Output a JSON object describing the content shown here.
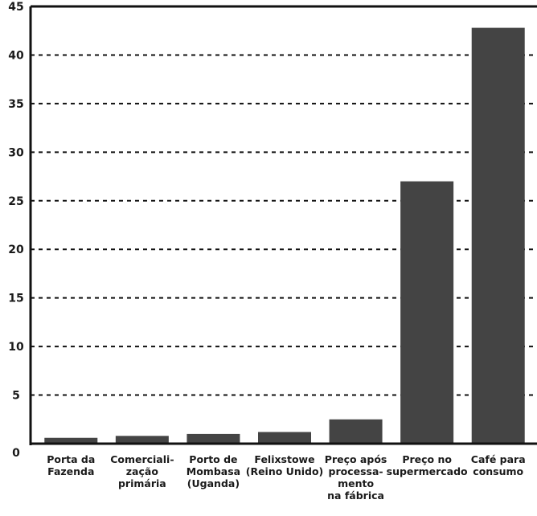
{
  "chart_data": {
    "type": "bar",
    "title": "",
    "xlabel": "",
    "ylabel": "",
    "ylim": [
      0,
      45
    ],
    "yticks": [
      0,
      5,
      10,
      15,
      20,
      25,
      30,
      35,
      40,
      45
    ],
    "grid": true,
    "legend": "none",
    "bar_color": "#444444",
    "categories": [
      [
        "Porta da",
        "Fazenda"
      ],
      [
        "Comerciali-",
        "zação",
        "primária"
      ],
      [
        "Porto de",
        "Mombasa",
        "(Uganda)"
      ],
      [
        "Felixstowe",
        "(Reino Unido)"
      ],
      [
        "Preço após",
        "processa-",
        "mento",
        "na fábrica"
      ],
      [
        "Preço no",
        "supermercado"
      ],
      [
        "Café para",
        "consumo"
      ]
    ],
    "values": [
      0.6,
      0.8,
      1.0,
      1.2,
      2.5,
      27.0,
      42.8
    ]
  }
}
